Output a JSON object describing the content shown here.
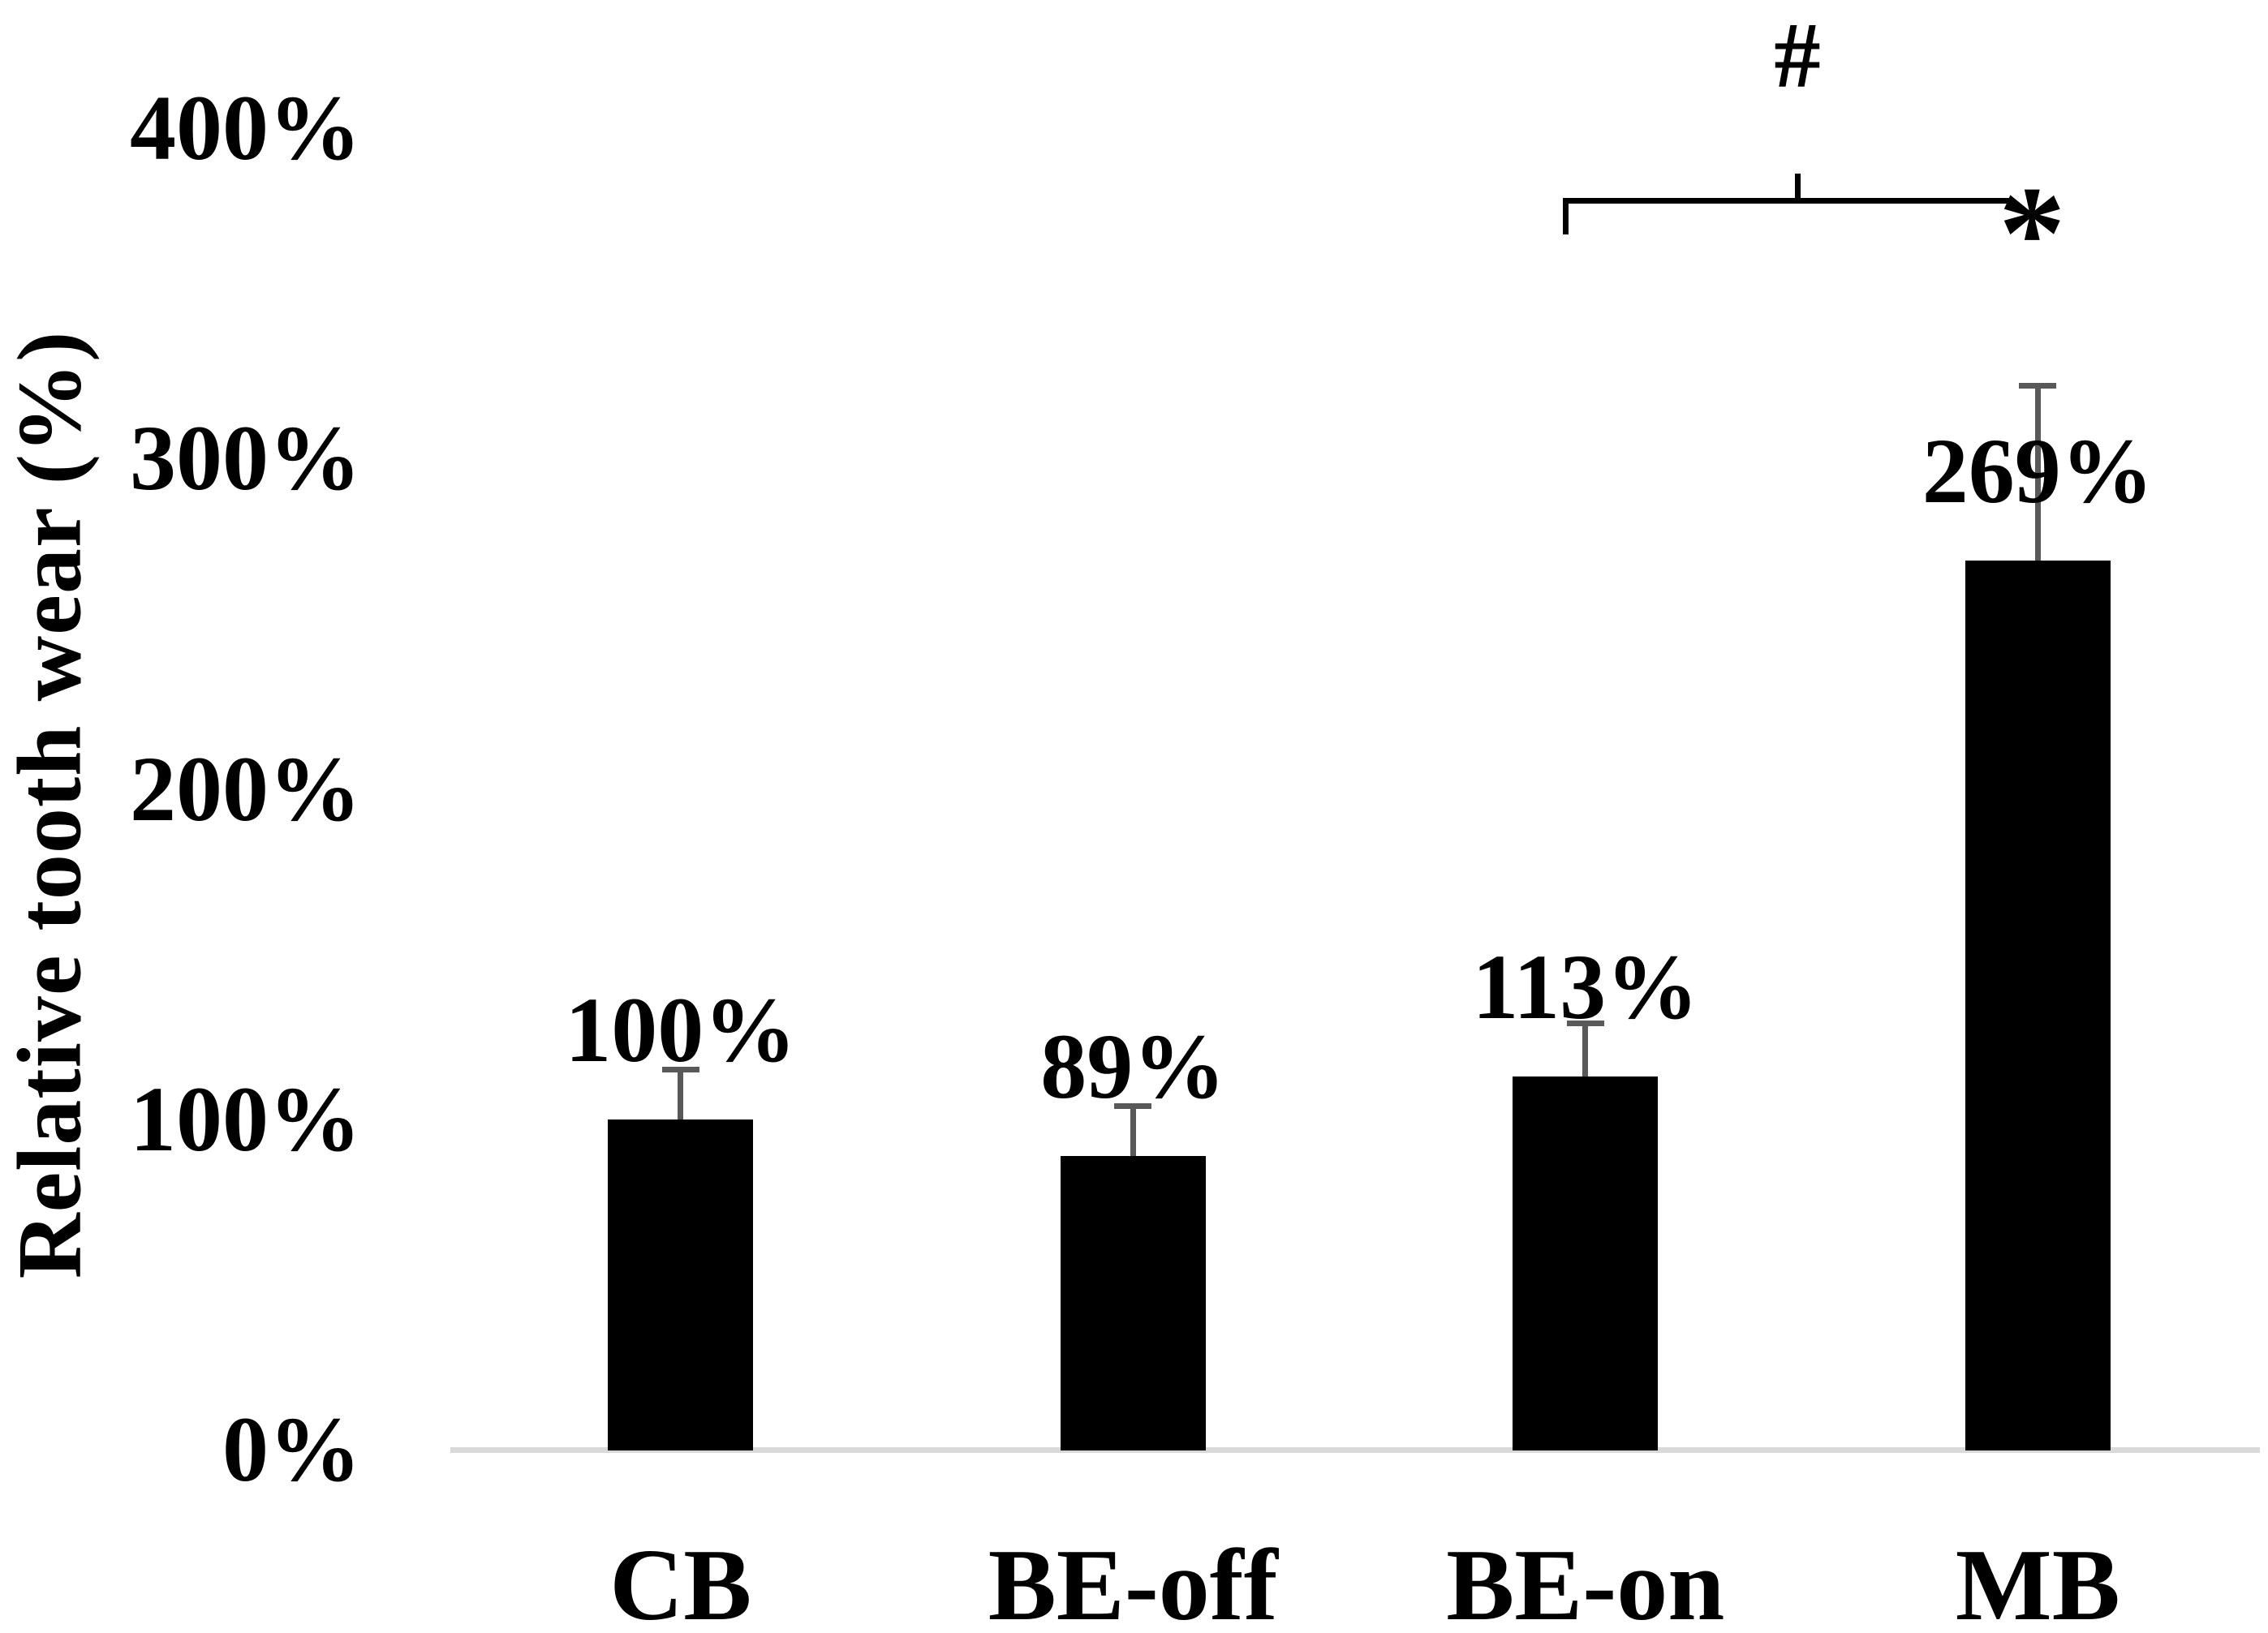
{
  "chart_data": {
    "type": "bar",
    "title": "",
    "xlabel": "",
    "ylabel": "Relative tooth wear (%)",
    "categories": [
      "CB",
      "BE-off",
      "BE-on",
      "MB"
    ],
    "values": [
      100,
      89,
      113,
      269
    ],
    "data_labels": [
      "100%",
      "89%",
      "113%",
      "269%"
    ],
    "error_plus": [
      15,
      15,
      16,
      53
    ],
    "ylim": [
      0,
      400
    ],
    "ytick_labels": [
      "400%",
      "300%",
      "200%",
      "100%",
      "0%"
    ],
    "grid": false,
    "legend": "none",
    "bar_color": "#000000",
    "error_bar_color": "#595959",
    "axis_line_color": "#d9d9d9",
    "text_color": "#000000",
    "annotations": {
      "bracket_from_category": "BE-on",
      "bracket_to_category": "MB",
      "bracket_top_symbol": "#",
      "bracket_end_symbol": "*"
    }
  }
}
